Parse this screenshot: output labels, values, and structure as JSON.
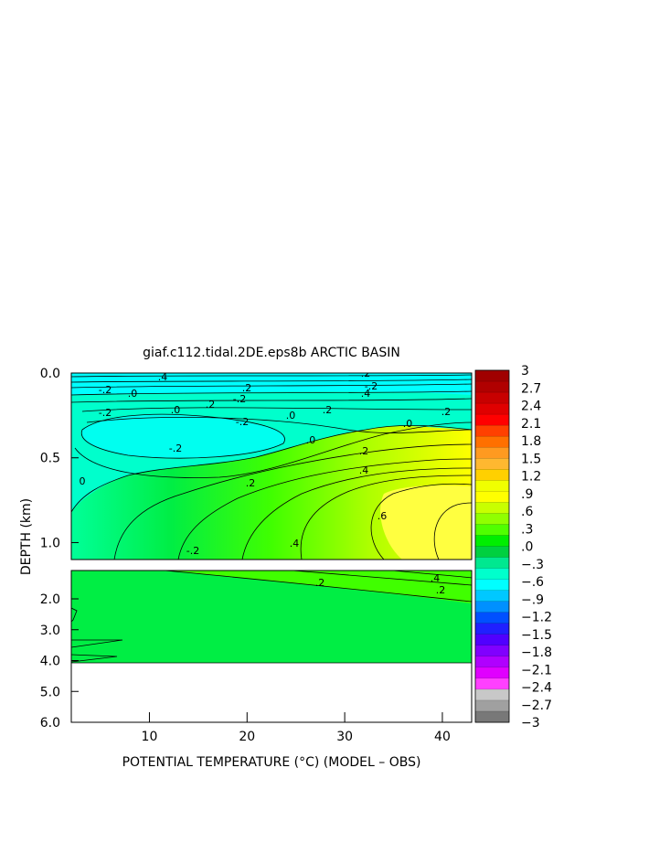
{
  "chart_data": {
    "type": "heatmap",
    "title": "giaf.c112.tidal.2DE.eps8b ARCTIC BASIN",
    "xlabel": "POTENTIAL TEMPERATURE (°C) (MODEL – OBS)",
    "ylabel": "DEPTH (km)",
    "xlim": [
      2,
      43
    ],
    "x_ticks": [
      10,
      20,
      30,
      40
    ],
    "x_tick_labels": [
      "10",
      "20",
      "30",
      "40"
    ],
    "upper_panel": {
      "ylim": [
        0.0,
        1.1
      ],
      "y_ticks": [
        0.0,
        0.5,
        1.0
      ],
      "y_tick_labels": [
        "0.0",
        "0.5",
        "1.0"
      ]
    },
    "lower_panel": {
      "ylim": [
        1.1,
        6.0
      ],
      "y_ticks": [
        2.0,
        3.0,
        4.0,
        5.0,
        6.0
      ],
      "y_tick_labels": [
        "2.0",
        "3.0",
        "4.0",
        "5.0",
        "6.0"
      ],
      "data_bottom_depth": 4.0
    },
    "colorbar": {
      "range": [
        -3,
        3
      ],
      "tick_values": [
        3,
        2.7,
        2.4,
        2.1,
        1.8,
        1.5,
        1.2,
        0.9,
        0.6,
        0.3,
        0.0,
        -0.3,
        -0.6,
        -0.9,
        -1.2,
        -1.5,
        -1.8,
        -2.1,
        -2.4,
        -2.7,
        -3
      ],
      "tick_labels": [
        "3",
        "2.7",
        "2.4",
        "2.1",
        "1.8",
        "1.5",
        "1.2",
        ".9",
        ".6",
        ".3",
        ".0",
        "−.3",
        "−.6",
        "−.9",
        "−1.2",
        "−1.5",
        "−1.8",
        "−2.1",
        "−2.4",
        "−2.7",
        "−3"
      ],
      "colors": [
        "#a00000",
        "#b00000",
        "#c80000",
        "#e00000",
        "#ff0000",
        "#ff4000",
        "#ff7000",
        "#ff9a20",
        "#ffb830",
        "#ffd000",
        "#f0ff00",
        "#ffff00",
        "#c8ff00",
        "#90ff00",
        "#50ff00",
        "#00ee00",
        "#00d040",
        "#00e890",
        "#00ffcc",
        "#00ffff",
        "#00c8ff",
        "#0090ff",
        "#0050ff",
        "#2020ff",
        "#5000ff",
        "#8000ff",
        "#b000ff",
        "#e000ff",
        "#ff40ff",
        "#c8c8c8",
        "#a0a0a0",
        "#787878"
      ]
    },
    "contour_labels": [
      ".4",
      "-.2",
      ".0",
      ".2",
      "-.2",
      ".0",
      ".2",
      ".0",
      ".2",
      "-.2",
      ".0",
      ".0",
      ".2",
      ".2",
      ".4",
      ".6",
      ".4",
      "-.2",
      "-.2",
      ".2",
      ".4",
      ".2",
      "0",
      "-.2",
      "-.2"
    ],
    "grid": false
  }
}
